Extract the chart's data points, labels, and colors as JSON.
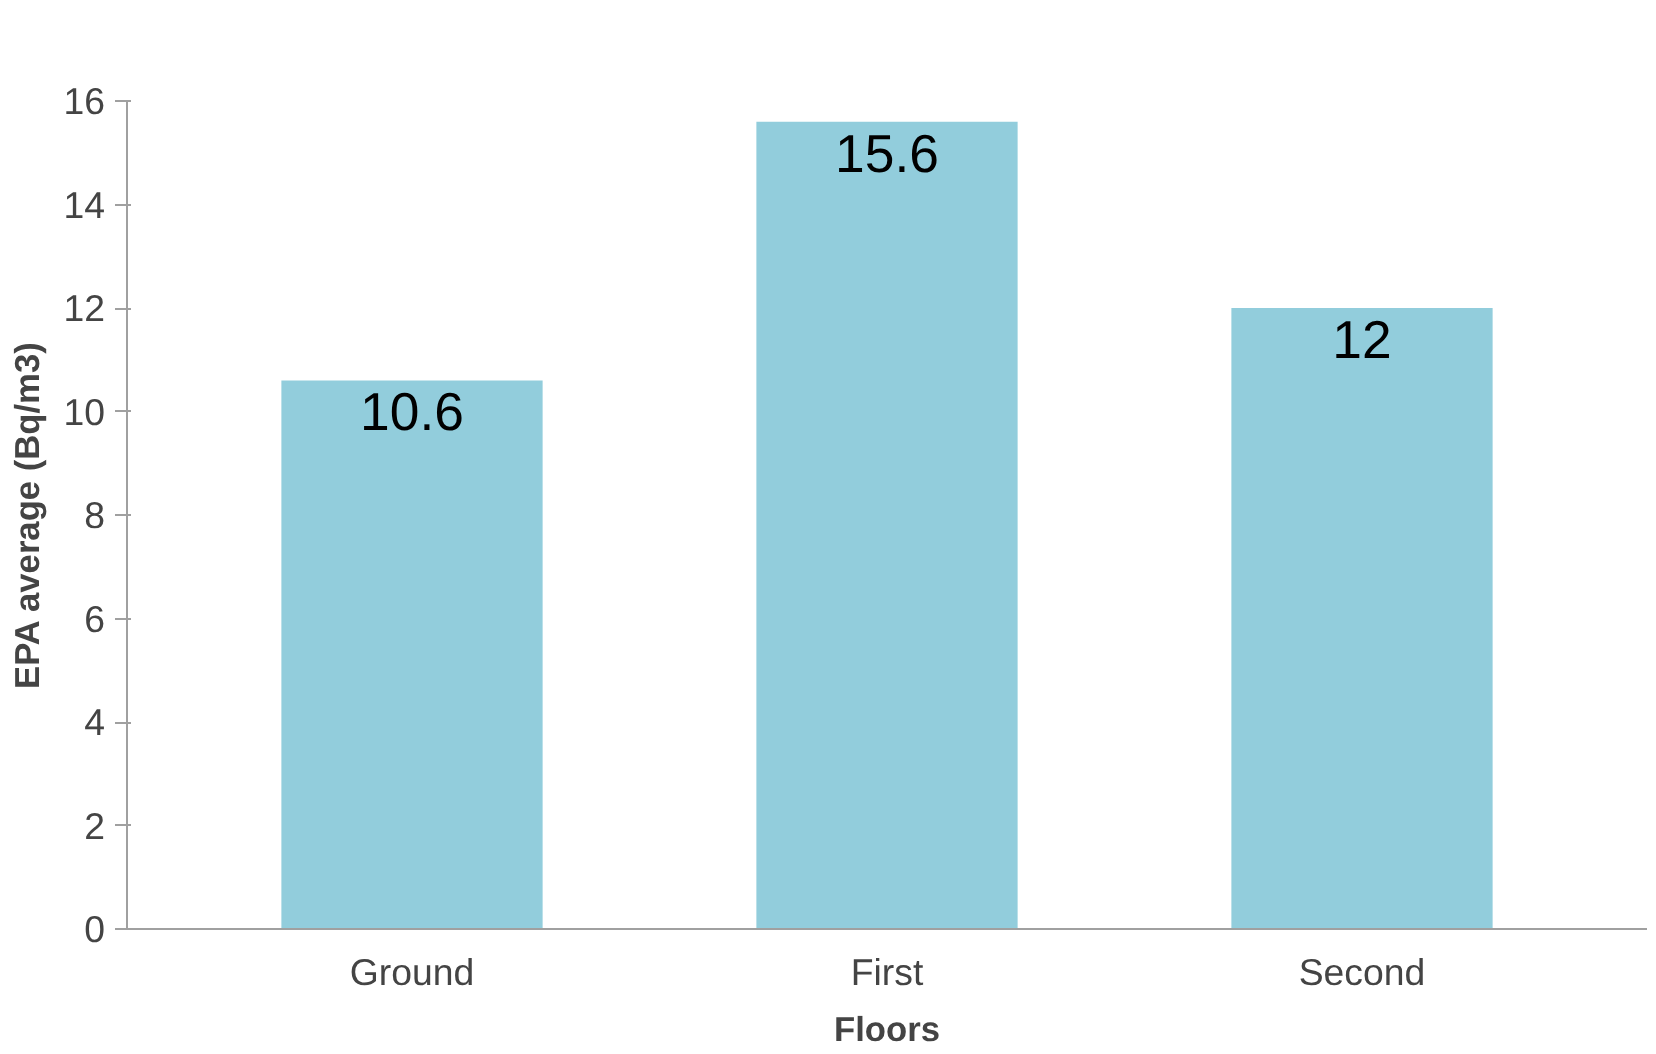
{
  "chart_data": {
    "type": "bar",
    "xlabel": "Floors",
    "ylabel": "EPA average (Bq/m3)",
    "categories": [
      "Ground",
      "First",
      "Second"
    ],
    "values": [
      10.6,
      15.6,
      12
    ],
    "color": "#92cddc",
    "ylim": [
      0,
      16
    ],
    "yticks": [
      0,
      2,
      4,
      6,
      8,
      10,
      12,
      14,
      16
    ],
    "data_labels": true,
    "grid": false
  }
}
